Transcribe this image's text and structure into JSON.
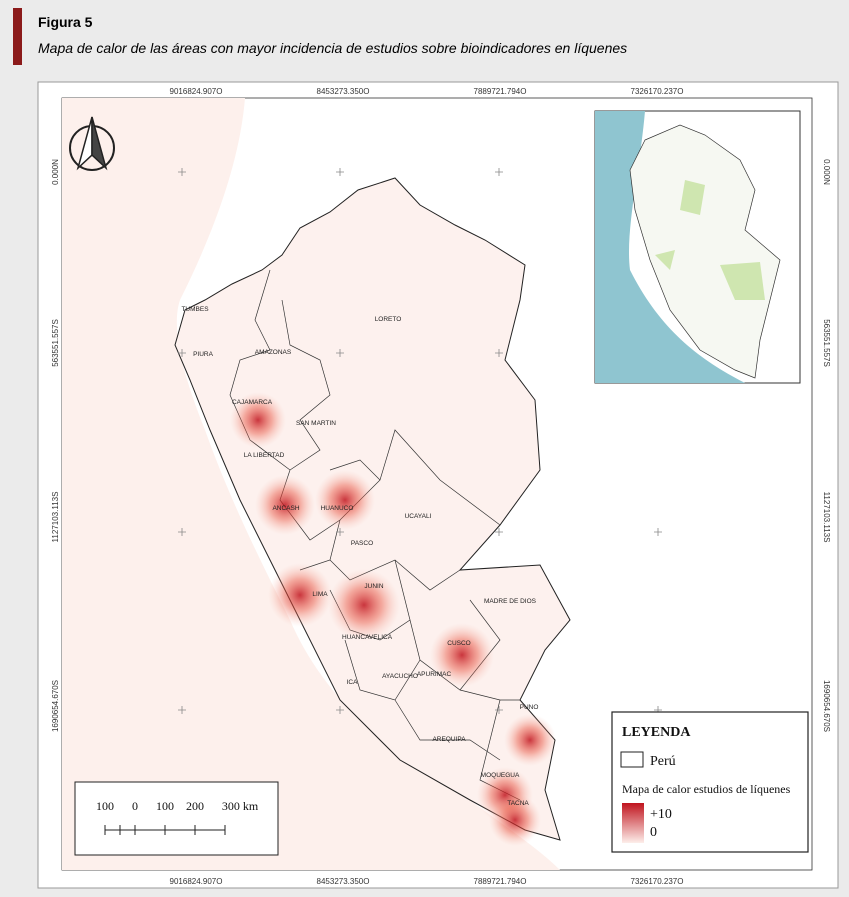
{
  "header": {
    "label": "Figura 5",
    "title": "Mapa de calor de las áreas con mayor incidencia de estudios sobre bioindicadores en líquenes"
  },
  "map": {
    "x_coords": [
      "9016824.907O",
      "8453273.350O",
      "7889721.794O",
      "7326170.237O"
    ],
    "y_coords": [
      "0.000N",
      "563551.557S",
      "1127103.113S",
      "1690654.670S"
    ],
    "regions": [
      "TUMBES",
      "PIURA",
      "AMAZONAS",
      "CAJAMARCA",
      "LORETO",
      "SAN MARTIN",
      "LA LIBERTAD",
      "ANCASH",
      "HUANUCO",
      "UCAYALI",
      "PASCO",
      "JUNIN",
      "LIMA",
      "MADRE DE DIOS",
      "HUANCAVELICA",
      "CUSCO",
      "ICA",
      "AYACUCHO",
      "APURIMAC",
      "PUNO",
      "AREQUIPA",
      "MOQUEGUA",
      "TACNA"
    ],
    "legend": {
      "title": "LEYENDA",
      "item": "Perú",
      "heat_title": "Mapa de calor estudios de líquenes",
      "max": "+10",
      "min": "0"
    },
    "scale": {
      "labels": [
        "100",
        "0",
        "100",
        "200",
        "300 km"
      ]
    }
  }
}
